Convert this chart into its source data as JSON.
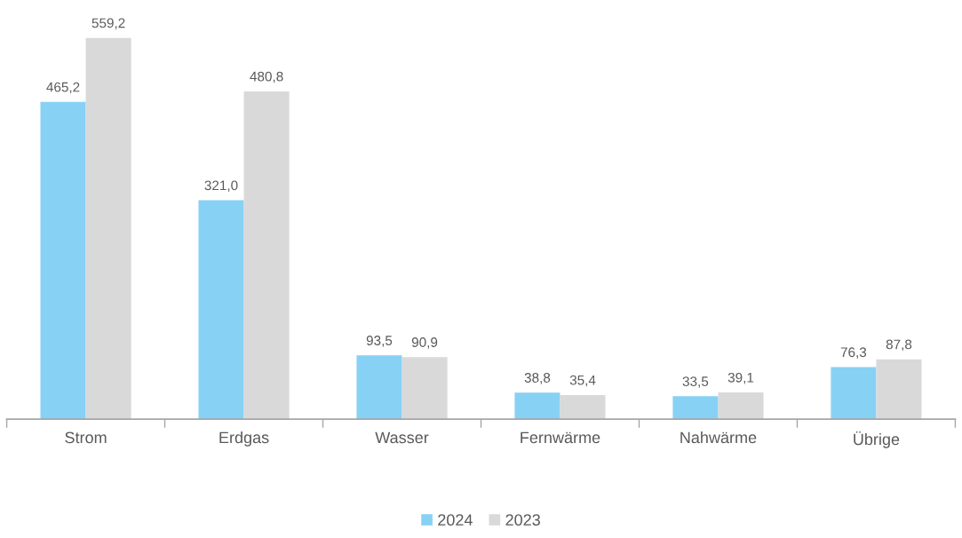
{
  "chart_data": {
    "type": "bar",
    "categories": [
      "Strom",
      "Erdgas",
      "Wasser",
      "Fernwärme",
      "Nahwärme",
      "Übrige"
    ],
    "series": [
      {
        "name": "2024",
        "color": "#87d1f5",
        "values": [
          465.2,
          321.0,
          93.5,
          38.8,
          33.5,
          76.3
        ],
        "value_labels": [
          "465,2",
          "321,0",
          "93,5",
          "38,8",
          "33,5",
          "76,3"
        ]
      },
      {
        "name": "2023",
        "color": "#d9d9d9",
        "values": [
          559.2,
          480.8,
          90.9,
          35.4,
          39.1,
          87.8
        ],
        "value_labels": [
          "559,2",
          "480,8",
          "90,9",
          "35,4",
          "39,1",
          "87,8"
        ]
      }
    ],
    "legend": "bottom",
    "grid": false
  }
}
